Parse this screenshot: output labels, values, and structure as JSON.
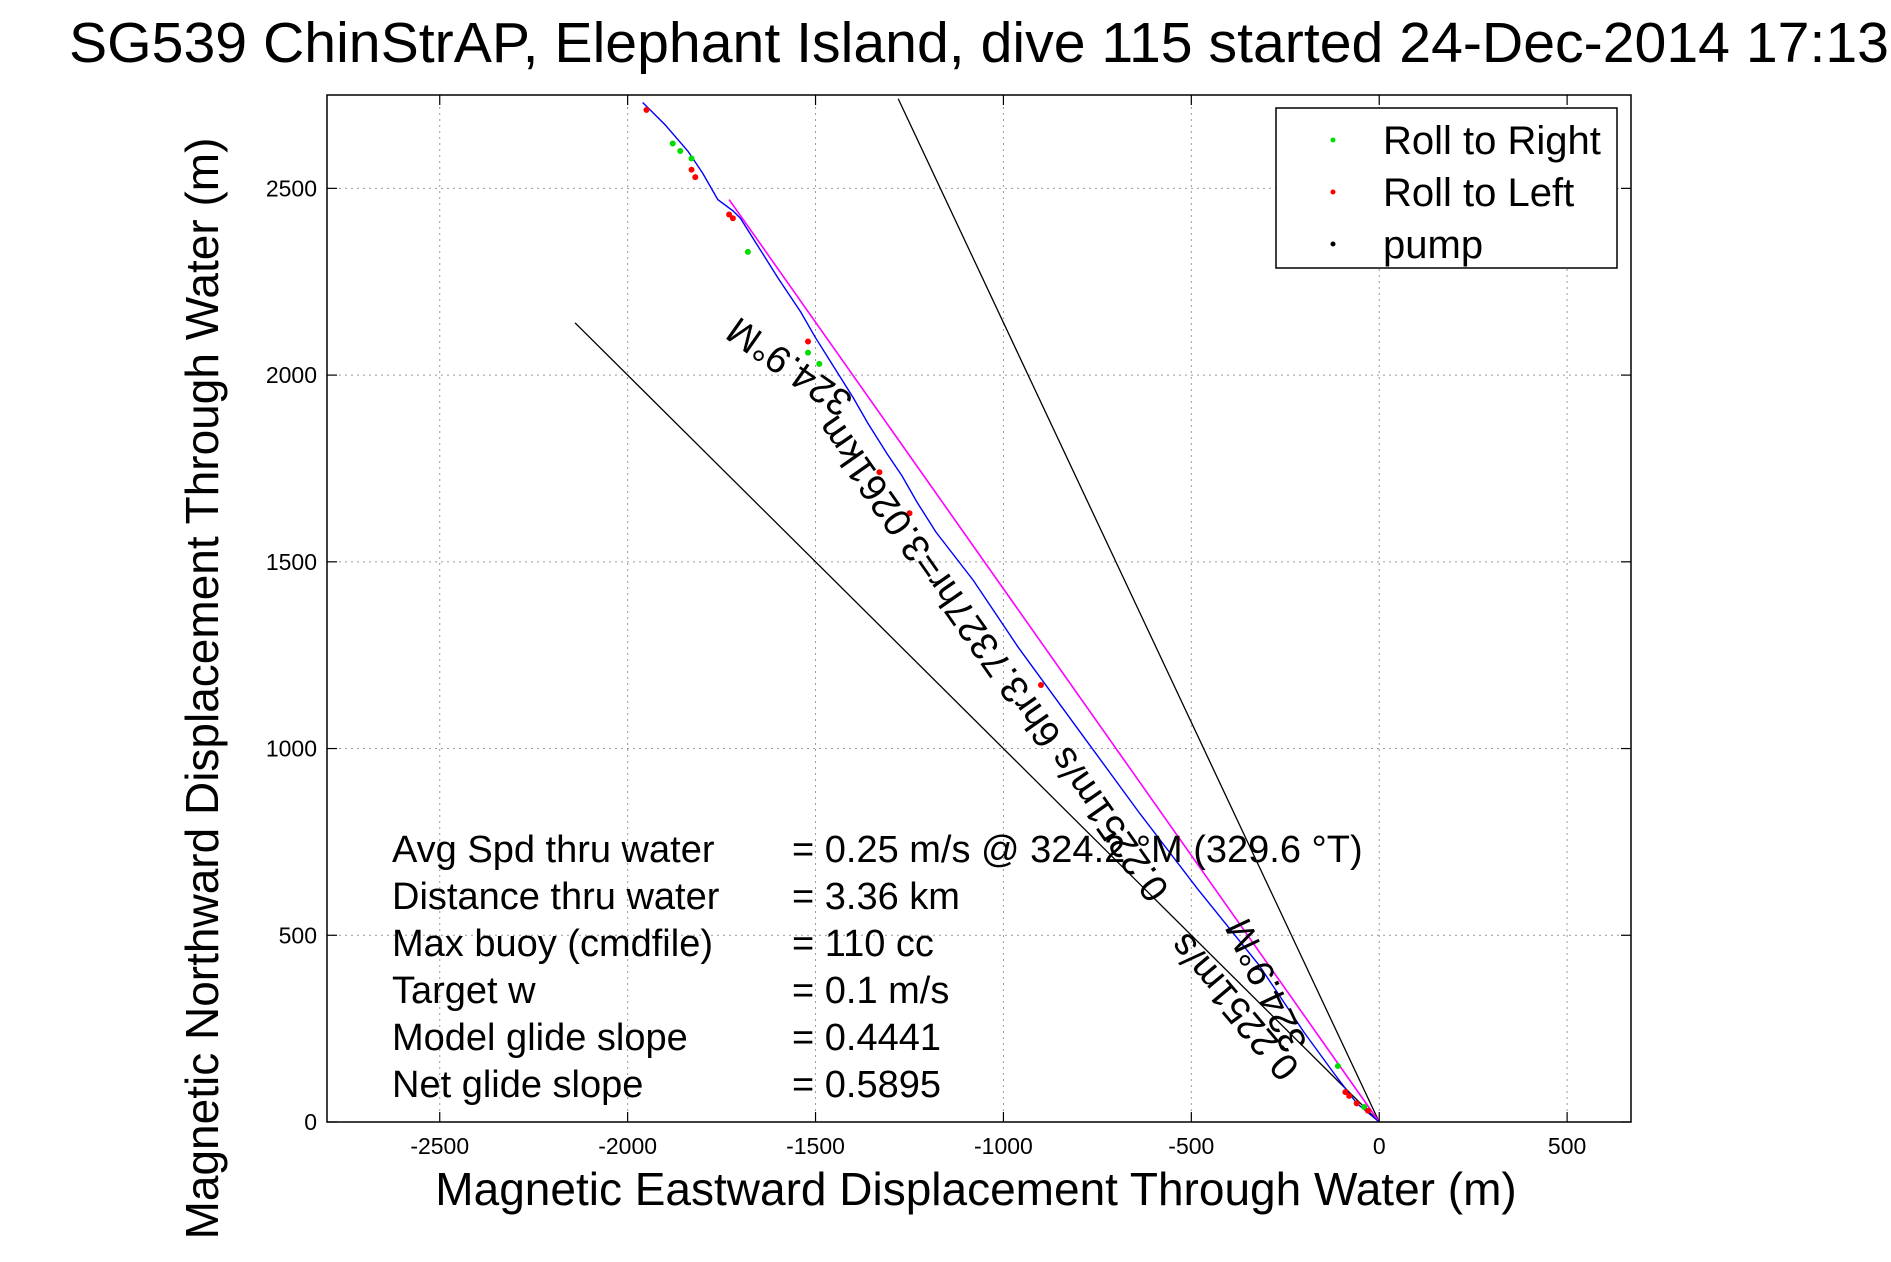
{
  "chart_data": {
    "type": "line",
    "title": "SG539 ChinStrAP, Elephant Island, dive 115 started 24-Dec-2014 17:13",
    "xlabel": "Magnetic Eastward Displacement Through Water (m)",
    "ylabel": "Magnetic Northward Displacement Through Water (m)",
    "xlim": [
      -2800,
      670
    ],
    "ylim": [
      0,
      2750
    ],
    "xticks": [
      -2500,
      -2000,
      -1500,
      -1000,
      -500,
      0,
      500
    ],
    "yticks": [
      0,
      500,
      1000,
      1500,
      2000,
      2500
    ],
    "xtick_labels": [
      "-2500",
      "-2000",
      "-1500",
      "-1000",
      "-500",
      "0",
      "500"
    ],
    "ytick_labels": [
      "0",
      "500",
      "1000",
      "1500",
      "2000",
      "2500"
    ],
    "grid": true,
    "legend_position": "top-right",
    "legend": [
      {
        "label": "Roll to Right",
        "color": "#00dd00"
      },
      {
        "label": "Roll to Left",
        "color": "#ff0000"
      },
      {
        "label": "pump",
        "color": "#000000"
      }
    ],
    "track": {
      "color": "#0000ff",
      "x": [
        0,
        -60,
        -120,
        -200,
        -320,
        -480,
        -640,
        -800,
        -960,
        -1080,
        -1180,
        -1230,
        -1270,
        -1310,
        -1360,
        -1400,
        -1450,
        -1500,
        -1540,
        -1600,
        -1650,
        -1700,
        -1720,
        -1760,
        -1800,
        -1840,
        -1900,
        -1960
      ],
      "y": [
        0,
        50,
        130,
        240,
        420,
        620,
        830,
        1050,
        1270,
        1450,
        1580,
        1660,
        1730,
        1790,
        1870,
        1940,
        2020,
        2100,
        2170,
        2260,
        2340,
        2420,
        2440,
        2470,
        2540,
        2600,
        2670,
        2730
      ]
    },
    "rolls_right": {
      "x": [
        -40,
        -110,
        -1490,
        -1520,
        -1680,
        -1830,
        -1860,
        -1880
      ],
      "y": [
        40,
        150,
        2030,
        2060,
        2330,
        2580,
        2600,
        2620
      ]
    },
    "rolls_left": {
      "x": [
        -30,
        -60,
        -80,
        -90,
        -900,
        -1250,
        -1330,
        -1520,
        -1720,
        -1730,
        -1820,
        -1830,
        -1950
      ],
      "y": [
        30,
        50,
        70,
        80,
        1170,
        1630,
        1740,
        2090,
        2420,
        2430,
        2530,
        2550,
        2710
      ]
    },
    "heading_line": {
      "color": "#ff00ff",
      "x": [
        0,
        -1730
      ],
      "y": [
        0,
        2470
      ]
    },
    "bracket_lines": [
      {
        "color": "#000000",
        "x": [
          0,
          -2140
        ],
        "y": [
          0,
          2140
        ]
      },
      {
        "color": "#000000",
        "x": [
          0,
          -1280
        ],
        "y": [
          0,
          2740
        ]
      }
    ],
    "annotations": [
      {
        "text": "324.9°M",
        "x": -1550,
        "y": 2050,
        "angle_deg": 215
      },
      {
        "text": "0.2251m/s 6hr3.7327hr=3.0261km",
        "x": -1000,
        "y": 1260,
        "angle_deg": 235
      },
      {
        "text": "324.9°M",
        "x": -270,
        "y": 380,
        "angle_deg": 245
      },
      {
        "text": "0.2251m/s",
        "x": -360,
        "y": 330,
        "angle_deg": 230
      }
    ],
    "stats": [
      {
        "label": "Avg Spd thru water",
        "value": "=  0.25 m/s @ 324.2 °M (329.6 °T)"
      },
      {
        "label": "Distance thru water",
        "value": "=  3.36 km"
      },
      {
        "label": "Max buoy (cmdfile)",
        "value": "= 110 cc"
      },
      {
        "label": "Target w",
        "value": "= 0.1 m/s"
      },
      {
        "label": "Model glide slope",
        "value": "= 0.4441"
      },
      {
        "label": "Net glide slope",
        "value": "= 0.5895"
      }
    ]
  }
}
